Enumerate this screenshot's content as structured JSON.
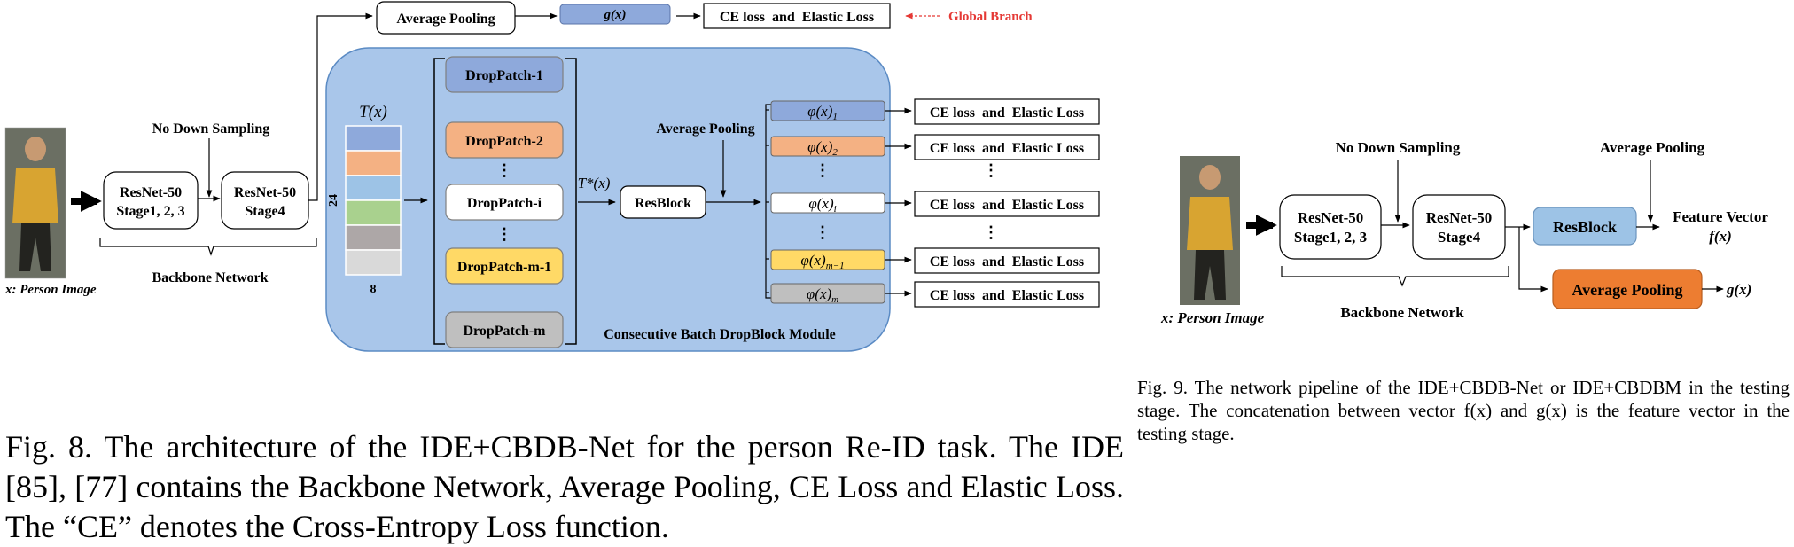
{
  "fig8": {
    "top_branch": {
      "avg_pool": "Average Pooling",
      "gx": "g(x)",
      "loss": "CE loss  and  Elastic Loss",
      "global_label": "Global Branch"
    },
    "person_label": "x: Person  Image",
    "no_down": "No  Down Sampling",
    "resnet1": [
      "ResNet-50",
      "Stage1, 2, 3"
    ],
    "resnet2": [
      "ResNet-50",
      "Stage4"
    ],
    "backbone": "Backbone  Network",
    "tensor": {
      "label": "T(x)",
      "dim_h": "24",
      "dim_w": "8",
      "colors": [
        "#8EA9DB",
        "#F4B183",
        "#9DC3E6",
        "#A9D18E",
        "#ADA7A7",
        "#D9D9D9"
      ]
    },
    "droppatches": [
      {
        "label": "DropPatch-1",
        "color": "#8EA9DB"
      },
      {
        "label": "DropPatch-2",
        "color": "#F4B183"
      },
      {
        "label": "DropPatch-i",
        "color": "#FFFFFF"
      },
      {
        "label": "DropPatch-m-1",
        "color": "#FFD966"
      },
      {
        "label": "DropPatch-m",
        "color": "#BFBFBF"
      }
    ],
    "dots": "⋮",
    "tstar": "T*(x)",
    "resblock": "ResBlock",
    "avg_pool2": "Average Pooling",
    "phis": [
      {
        "label": "φ(x)",
        "sub": "1",
        "color": "#8EA9DB"
      },
      {
        "label": "φ(x)",
        "sub": "2",
        "color": "#F4B183"
      },
      {
        "label": "φ(x)",
        "sub": "i",
        "color": "#FFFFFF"
      },
      {
        "label": "φ(x)",
        "sub": "m−1",
        "color": "#FFD966"
      },
      {
        "label": "φ(x)",
        "sub": "m",
        "color": "#BFBFBF"
      }
    ],
    "loss": "CE loss  and  Elastic Loss",
    "module_label": "Consecutive Batch DropBlock  Module",
    "module_color": "#A9C6EA",
    "caption": "Fig. 8.  The architecture of the IDE+CBDB-Net for the person Re-ID task. The IDE [85], [77] contains the Backbone Network, Average Pooling, CE Loss and Elastic Loss. The “CE” denotes the Cross-Entropy Loss function."
  },
  "fig9": {
    "no_down": "No  Down Sampling",
    "avg_pool_top": "Average Pooling",
    "resnet1": [
      "ResNet-50",
      "Stage1, 2, 3"
    ],
    "resnet2": [
      "ResNet-50",
      "Stage4"
    ],
    "resblock": "ResBlock",
    "resblock_color": "#9DC3E6",
    "feature": [
      "Feature Vector",
      "f(x)"
    ],
    "avg_pool_bottom": "Average Pooling",
    "avg_pool_color": "#ED7D31",
    "gx": "g(x)",
    "backbone": "Backbone  Network",
    "person_label": "x: Person Image",
    "caption": "Fig. 9.  The network pipeline of the IDE+CBDB-Net or IDE+CBDBM in the testing stage. The concatenation between vector f(x) and g(x) is the feature vector in the testing stage."
  }
}
